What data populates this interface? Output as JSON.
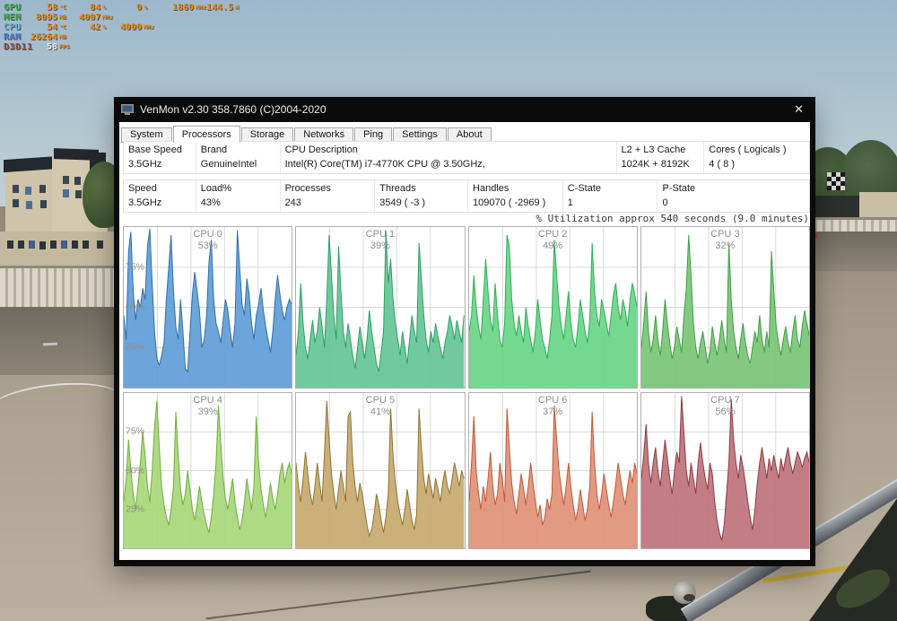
{
  "osd": {
    "value_color": "#f28c0a",
    "rows": [
      {
        "label": "GPU",
        "label_color": "#44b04a",
        "items": [
          {
            "v": "58",
            "u": "°C"
          },
          {
            "v": "84",
            "u": "%"
          },
          {
            "v": "0",
            "u": "%"
          },
          {
            "v": "1860",
            "u": "MHz"
          },
          {
            "v": "144.5",
            "u": "W"
          }
        ]
      },
      {
        "label": "MEM",
        "label_color": "#44b04a",
        "items": [
          {
            "v": "8095",
            "u": "MB"
          },
          {
            "v": "4007",
            "u": "MHz"
          }
        ]
      },
      {
        "label": "CPU",
        "label_color": "#6aaede",
        "items": [
          {
            "v": "54",
            "u": "°C"
          },
          {
            "v": "42",
            "u": "%"
          },
          {
            "v": "4000",
            "u": "MHz"
          }
        ]
      },
      {
        "label": "RAM",
        "label_color": "#4b7fd6",
        "items": [
          {
            "v": "26264",
            "u": "MB"
          }
        ]
      },
      {
        "label": "D3D11",
        "label_color": "#9c4f46",
        "items": [
          {
            "v": "58",
            "u": "FPS",
            "white": true
          }
        ]
      }
    ]
  },
  "window": {
    "title": "VenMon v2.30 358.7860 (C)2004-2020",
    "close_label": "✕",
    "tabs": [
      {
        "label": "System"
      },
      {
        "label": "Processors",
        "active": true
      },
      {
        "label": "Storage"
      },
      {
        "label": "Networks"
      },
      {
        "label": "Ping"
      },
      {
        "label": "Settings"
      },
      {
        "label": "About"
      }
    ],
    "info1": [
      {
        "h": "Base Speed",
        "v": "3.5GHz"
      },
      {
        "h": "Brand",
        "v": "GenuineIntel"
      },
      {
        "h": "CPU Description",
        "v": "Intel(R) Core(TM) i7-4770K CPU @ 3.50GHz,"
      },
      {
        "h": "L2 + L3 Cache",
        "v": "1024K + 8192K"
      },
      {
        "h": "Cores ( Logicals )",
        "v": "4 ( 8 )"
      }
    ],
    "info2": [
      {
        "h": "Speed",
        "v": "3.5GHz"
      },
      {
        "h": "Load%",
        "v": "43%"
      },
      {
        "h": "Processes",
        "v": "243"
      },
      {
        "h": "Threads",
        "v": "3549 ( -3 )"
      },
      {
        "h": "Handles",
        "v": "109070 ( -2969 )"
      },
      {
        "h": "C-State",
        "v": "1"
      },
      {
        "h": "P-State",
        "v": "0"
      }
    ]
  },
  "chart_data": {
    "type": "area",
    "title": "% Utilization approx 540 seconds (9.0 minutes)",
    "ylim": [
      0,
      100
    ],
    "yticks": [
      "75%",
      "50%",
      "25%"
    ],
    "grid": true,
    "panels": [
      {
        "name": "CPU 0",
        "load": "53%",
        "fill": "#5b9bd5",
        "line": "#2f6fae",
        "values": [
          45,
          30,
          85,
          97,
          60,
          42,
          55,
          50,
          62,
          55,
          88,
          99,
          65,
          35,
          18,
          14,
          20,
          28,
          55,
          75,
          95,
          60,
          38,
          30,
          55,
          35,
          12,
          10,
          35,
          58,
          72,
          60,
          48,
          25,
          30,
          45,
          78,
          92,
          55,
          40,
          35,
          28,
          42,
          55,
          48,
          35,
          25,
          40,
          98,
          75,
          52,
          45,
          68,
          58,
          40,
          30,
          45,
          52,
          62,
          48,
          38,
          30,
          22,
          35,
          55,
          70,
          58,
          48,
          42,
          50,
          55,
          52
        ]
      },
      {
        "name": "CPU 1",
        "load": "39%",
        "fill": "#62c492",
        "line": "#2f9e68",
        "values": [
          20,
          35,
          65,
          40,
          25,
          18,
          30,
          42,
          28,
          35,
          50,
          38,
          25,
          55,
          95,
          70,
          45,
          30,
          88,
          60,
          35,
          25,
          40,
          30,
          20,
          12,
          25,
          38,
          28,
          18,
          30,
          48,
          35,
          25,
          15,
          10,
          22,
          35,
          98,
          65,
          80,
          55,
          40,
          30,
          20,
          35,
          25,
          15,
          30,
          45,
          35,
          28,
          90,
          68,
          45,
          30,
          22,
          35,
          28,
          40,
          32,
          25,
          18,
          28,
          35,
          45,
          38,
          30,
          42,
          35,
          28,
          45
        ]
      },
      {
        "name": "CPU 2",
        "load": "49%",
        "fill": "#66d485",
        "line": "#2fae57",
        "values": [
          35,
          45,
          70,
          50,
          38,
          30,
          55,
          80,
          60,
          42,
          35,
          65,
          45,
          30,
          25,
          40,
          95,
          88,
          55,
          40,
          32,
          45,
          35,
          28,
          50,
          38,
          30,
          22,
          35,
          55,
          42,
          30,
          25,
          18,
          30,
          45,
          92,
          70,
          50,
          38,
          30,
          45,
          60,
          40,
          30,
          25,
          38,
          55,
          45,
          35,
          28,
          42,
          90,
          60,
          45,
          38,
          55,
          48,
          40,
          32,
          45,
          58,
          65,
          50,
          42,
          55,
          48,
          38,
          55,
          65,
          58,
          50
        ]
      },
      {
        "name": "CPU 3",
        "load": "32%",
        "fill": "#75c472",
        "line": "#3f9e46",
        "values": [
          25,
          40,
          60,
          35,
          22,
          30,
          45,
          30,
          20,
          35,
          55,
          40,
          28,
          18,
          25,
          38,
          30,
          22,
          45,
          62,
          95,
          70,
          40,
          25,
          18,
          28,
          35,
          25,
          15,
          22,
          38,
          28,
          20,
          30,
          42,
          30,
          22,
          90,
          55,
          35,
          25,
          18,
          30,
          40,
          28,
          20,
          15,
          25,
          35,
          28,
          45,
          30,
          22,
          35,
          25,
          85,
          60,
          38,
          28,
          20,
          30,
          38,
          28,
          22,
          35,
          45,
          30,
          25,
          38,
          48,
          40,
          32
        ]
      },
      {
        "name": "CPU 4",
        "load": "39%",
        "fill": "#a6d677",
        "line": "#6fae3b",
        "values": [
          30,
          45,
          70,
          50,
          35,
          25,
          40,
          55,
          75,
          60,
          40,
          30,
          50,
          78,
          95,
          65,
          40,
          28,
          20,
          15,
          25,
          40,
          88,
          60,
          38,
          28,
          35,
          50,
          38,
          25,
          18,
          28,
          40,
          30,
          22,
          15,
          10,
          20,
          35,
          55,
          92,
          68,
          45,
          32,
          25,
          35,
          45,
          30,
          20,
          12,
          18,
          30,
          45,
          35,
          25,
          40,
          85,
          55,
          38,
          28,
          20,
          30,
          42,
          32,
          25,
          35,
          48,
          55,
          42,
          50,
          55,
          48
        ]
      },
      {
        "name": "CPU 5",
        "load": "41%",
        "fill": "#c7a76a",
        "line": "#8f7331",
        "values": [
          55,
          40,
          30,
          45,
          62,
          48,
          35,
          28,
          40,
          55,
          42,
          30,
          60,
          95,
          70,
          48,
          35,
          25,
          38,
          50,
          40,
          30,
          85,
          88,
          55,
          40,
          30,
          42,
          35,
          25,
          15,
          8,
          12,
          22,
          35,
          28,
          18,
          10,
          20,
          35,
          90,
          60,
          42,
          30,
          22,
          15,
          25,
          38,
          28,
          18,
          12,
          22,
          90,
          65,
          45,
          35,
          48,
          40,
          32,
          45,
          38,
          30,
          42,
          50,
          40,
          35,
          45,
          55,
          48,
          40,
          50,
          45
        ]
      },
      {
        "name": "CPU 6",
        "load": "37%",
        "fill": "#e08f74",
        "line": "#bf5a38",
        "values": [
          30,
          55,
          85,
          50,
          35,
          25,
          40,
          30,
          45,
          62,
          40,
          28,
          35,
          55,
          45,
          30,
          90,
          65,
          42,
          30,
          22,
          35,
          48,
          38,
          28,
          40,
          55,
          42,
          30,
          20,
          28,
          15,
          20,
          32,
          25,
          35,
          92,
          70,
          50,
          38,
          28,
          40,
          55,
          40,
          28,
          18,
          25,
          38,
          28,
          18,
          25,
          40,
          88,
          55,
          35,
          25,
          35,
          48,
          38,
          28,
          20,
          30,
          42,
          55,
          45,
          35,
          28,
          40,
          50,
          42,
          55,
          48
        ]
      },
      {
        "name": "CPU 7",
        "load": "56%",
        "fill": "#bb7077",
        "line": "#8e3b44",
        "values": [
          45,
          60,
          80,
          55,
          42,
          55,
          65,
          50,
          40,
          55,
          70,
          58,
          45,
          35,
          50,
          62,
          55,
          98,
          75,
          50,
          40,
          55,
          45,
          35,
          55,
          68,
          55,
          45,
          38,
          55,
          48,
          30,
          18,
          10,
          5,
          15,
          35,
          55,
          96,
          70,
          55,
          45,
          60,
          52,
          42,
          30,
          20,
          12,
          25,
          42,
          55,
          65,
          55,
          45,
          58,
          50,
          60,
          52,
          45,
          58,
          50,
          58,
          65,
          55,
          48,
          55,
          62,
          58,
          52,
          58,
          62,
          55
        ]
      }
    ]
  }
}
